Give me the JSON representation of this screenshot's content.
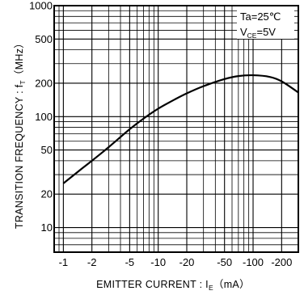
{
  "chart_data": {
    "type": "line",
    "x_scale": "log",
    "y_scale": "log",
    "x_axis_direction": "reversed (values become more negative to the right)",
    "xlim": [
      -0.8,
      -300
    ],
    "ylim": [
      6,
      1000
    ],
    "x_ticks": [
      {
        "value": -1,
        "label": "-1"
      },
      {
        "value": -2,
        "label": "-2"
      },
      {
        "value": -5,
        "label": "-5"
      },
      {
        "value": -10,
        "label": "-10"
      },
      {
        "value": -20,
        "label": "-20"
      },
      {
        "value": -50,
        "label": "-50"
      },
      {
        "value": -100,
        "label": "-100"
      },
      {
        "value": -200,
        "label": "-200"
      }
    ],
    "y_ticks": [
      {
        "value": 10,
        "label": "10"
      },
      {
        "value": 20,
        "label": "20"
      },
      {
        "value": 50,
        "label": "50"
      },
      {
        "value": 100,
        "label": "100"
      },
      {
        "value": 200,
        "label": "200"
      },
      {
        "value": 500,
        "label": "500"
      },
      {
        "value": 1000,
        "label": "1000"
      }
    ],
    "xlabel": "EMITTER  CURRENT : I",
    "xlabel_sub": "E",
    "xlabel_unit": "（mA）",
    "ylabel": "TRANSITION  FREQUENCY : f",
    "ylabel_sub": "T",
    "ylabel_unit": "（MHz）",
    "legend": {
      "position": "top-right",
      "line1": "Ta=25℃",
      "line2_main": "V",
      "line2_sub": "CE",
      "line2_rest": "=5V"
    },
    "grid": true,
    "series": [
      {
        "x": [
          -1,
          -1.5,
          -2,
          -3,
          -5,
          -7,
          -10,
          -15,
          -20,
          -30,
          -50,
          -70,
          -100,
          -150,
          -200,
          -300
        ],
        "y": [
          25,
          33,
          40,
          53,
          77,
          96,
          118,
          143,
          162,
          188,
          218,
          232,
          236,
          228,
          208,
          165
        ]
      }
    ]
  }
}
